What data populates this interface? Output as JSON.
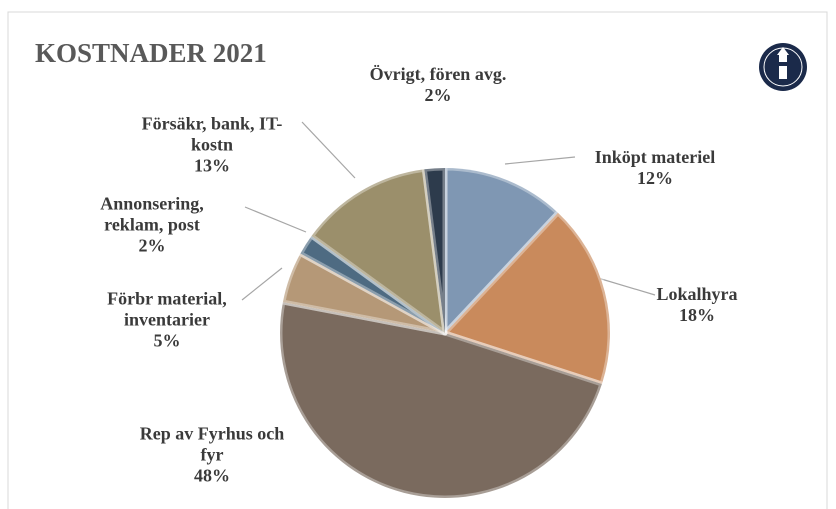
{
  "chart_data": {
    "type": "pie",
    "title": "KOSTNADER  2021",
    "categories": [
      "Inköpt materiel",
      "Lokalhyra",
      "Rep av Fyrhus och fyr",
      "Förbr material, inventarier",
      "Annonsering, reklam, post",
      "Försäkr, bank, IT-kostn",
      "Övrigt, fören avg."
    ],
    "values": [
      12,
      18,
      48,
      5,
      2,
      13,
      2
    ],
    "value_labels": [
      "12%",
      "18%",
      "48%",
      "5%",
      "2%",
      "13%",
      "2%"
    ],
    "colors": [
      "#7f97b3",
      "#c98a5c",
      "#7a6a5e",
      "#b59877",
      "#4e6b82",
      "#9b8f6b",
      "#2d3b4c"
    ]
  }
}
